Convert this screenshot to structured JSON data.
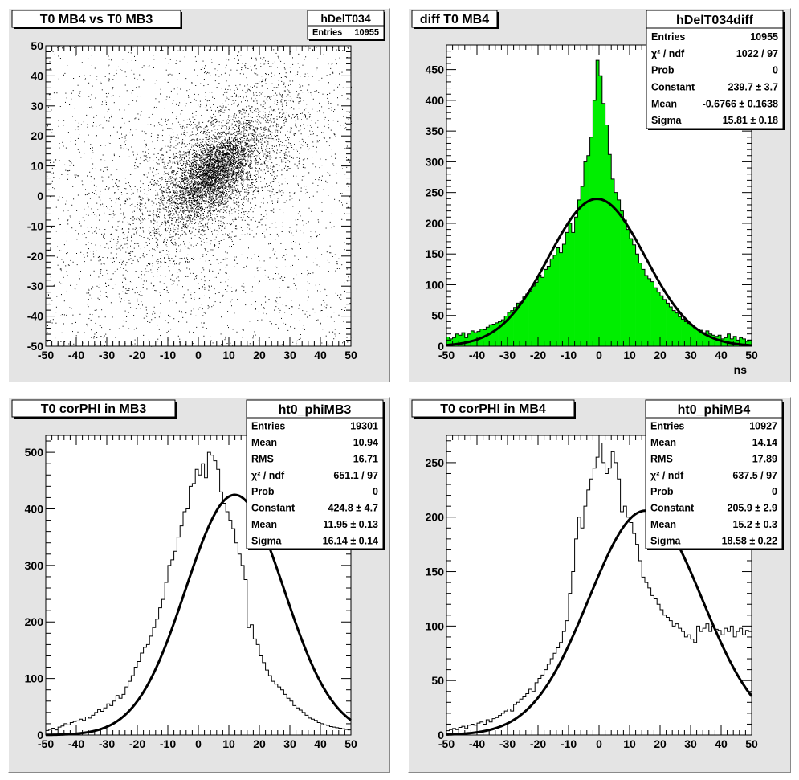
{
  "panels": [
    {
      "id": "p1",
      "title": "T0 MB4 vs T0 MB3",
      "stats": {
        "name": "hDelT034",
        "rows": [
          [
            "Entries",
            "10955"
          ]
        ]
      },
      "chart_data": {
        "type": "scatter",
        "xlim": [
          -50,
          50
        ],
        "ylim": [
          -50,
          50
        ],
        "xticks": [
          -50,
          -40,
          -30,
          -20,
          -10,
          0,
          10,
          20,
          30,
          40,
          50
        ],
        "yticks": [
          -50,
          -40,
          -30,
          -20,
          -10,
          0,
          10,
          20,
          30,
          40,
          50
        ],
        "entries": 10955,
        "distribution": {
          "mean_x": 11,
          "mean_y": 12,
          "sigma_core": 10,
          "correlation": 0.6,
          "background_fraction": 0.25
        },
        "xlabel": "",
        "ylabel": ""
      }
    },
    {
      "id": "p2",
      "title": "diff T0 MB4",
      "stats": {
        "name": "hDelT034diff",
        "rows": [
          [
            "Entries",
            "10955"
          ],
          [
            "χ² / ndf",
            "1022 / 97"
          ],
          [
            "Prob",
            "0"
          ],
          [
            "Constant",
            "239.7 ± 3.7"
          ],
          [
            "Mean",
            "-0.6766 ± 0.1638"
          ],
          [
            "Sigma",
            "15.81 ± 0.18"
          ]
        ]
      },
      "chart_data": {
        "type": "histogram",
        "fill": "#00ee00",
        "xlim": [
          -50,
          50
        ],
        "ylim": [
          0,
          490
        ],
        "xticks": [
          -50,
          -40,
          -30,
          -20,
          -10,
          0,
          10,
          20,
          30,
          40,
          50
        ],
        "yticks": [
          0,
          50,
          100,
          150,
          200,
          250,
          300,
          350,
          400,
          450
        ],
        "xlabel": "ns",
        "ylabel": "",
        "bins": 100,
        "values": [
          15,
          12,
          14,
          20,
          18,
          22,
          14,
          20,
          25,
          22,
          24,
          28,
          27,
          31,
          35,
          36,
          38,
          40,
          43,
          49,
          55,
          58,
          63,
          70,
          72,
          80,
          85,
          90,
          98,
          104,
          116,
          112,
          125,
          130,
          142,
          148,
          160,
          152,
          166,
          185,
          200,
          185,
          210,
          238,
          260,
          300,
          310,
          340,
          400,
          465,
          440,
          395,
          360,
          312,
          272,
          250,
          238,
          220,
          205,
          190,
          175,
          165,
          150,
          135,
          125,
          115,
          110,
          105,
          95,
          88,
          82,
          76,
          70,
          64,
          58,
          54,
          48,
          44,
          40,
          37,
          34,
          30,
          28,
          26,
          22,
          25,
          20,
          18,
          16,
          18,
          12,
          14,
          20,
          12,
          16,
          10,
          14,
          12,
          8,
          10
        ],
        "fit": {
          "constant": 239.7,
          "mean": -0.6766,
          "sigma": 15.81
        }
      }
    },
    {
      "id": "p3",
      "title": "T0 corPHI in MB3",
      "stats": {
        "name": "ht0_phiMB3",
        "rows": [
          [
            "Entries",
            "19301"
          ],
          [
            "Mean",
            "10.94"
          ],
          [
            "RMS",
            "16.71"
          ],
          [
            "χ² / ndf",
            "651.1 / 97"
          ],
          [
            "Prob",
            "0"
          ],
          [
            "Constant",
            "424.8 ± 4.7"
          ],
          [
            "Mean",
            "11.95 ± 0.13"
          ],
          [
            "Sigma",
            "16.14 ± 0.14"
          ]
        ]
      },
      "chart_data": {
        "type": "histogram",
        "fill": "none",
        "xlim": [
          -50,
          50
        ],
        "ylim": [
          0,
          530
        ],
        "xticks": [
          -50,
          -40,
          -30,
          -20,
          -10,
          0,
          10,
          20,
          30,
          40,
          50
        ],
        "yticks": [
          0,
          100,
          200,
          300,
          400,
          500
        ],
        "xlabel": "",
        "ylabel": "",
        "bins": 100,
        "values": [
          8,
          10,
          12,
          9,
          14,
          16,
          20,
          18,
          22,
          24,
          25,
          28,
          26,
          32,
          30,
          35,
          40,
          45,
          42,
          48,
          55,
          52,
          60,
          70,
          65,
          72,
          85,
          95,
          105,
          120,
          130,
          145,
          155,
          160,
          175,
          190,
          205,
          225,
          240,
          270,
          300,
          310,
          325,
          350,
          370,
          395,
          400,
          440,
          445,
          470,
          460,
          480,
          455,
          500,
          495,
          485,
          470,
          430,
          410,
          395,
          380,
          365,
          340,
          320,
          300,
          275,
          190,
          195,
          170,
          160,
          140,
          128,
          115,
          105,
          95,
          90,
          85,
          80,
          72,
          65,
          60,
          52,
          48,
          44,
          40,
          35,
          30,
          28,
          26,
          22,
          20,
          18,
          17,
          15,
          14,
          13,
          12,
          11,
          10,
          9
        ],
        "fit": {
          "constant": 424.8,
          "mean": 11.95,
          "sigma": 16.14
        }
      }
    },
    {
      "id": "p4",
      "title": "T0 corPHI in MB4",
      "stats": {
        "name": "ht0_phiMB4",
        "rows": [
          [
            "Entries",
            "10927"
          ],
          [
            "Mean",
            "14.14"
          ],
          [
            "RMS",
            "17.89"
          ],
          [
            "χ² / ndf",
            "637.5 / 97"
          ],
          [
            "Prob",
            "0"
          ],
          [
            "Constant",
            "205.9 ± 2.9"
          ],
          [
            "Mean",
            "15.2 ± 0.3"
          ],
          [
            "Sigma",
            "18.58 ± 0.22"
          ]
        ]
      },
      "chart_data": {
        "type": "histogram",
        "fill": "none",
        "xlim": [
          -50,
          50
        ],
        "ylim": [
          0,
          275
        ],
        "xticks": [
          -50,
          -40,
          -30,
          -20,
          -10,
          0,
          10,
          20,
          30,
          40,
          50
        ],
        "yticks": [
          0,
          50,
          100,
          150,
          200,
          250
        ],
        "xlabel": "",
        "ylabel": "",
        "bins": 100,
        "values": [
          4,
          5,
          6,
          5,
          7,
          8,
          6,
          9,
          10,
          9,
          11,
          12,
          10,
          14,
          12,
          15,
          16,
          18,
          20,
          22,
          24,
          22,
          28,
          30,
          33,
          35,
          38,
          42,
          40,
          48,
          52,
          55,
          60,
          65,
          70,
          75,
          80,
          85,
          95,
          105,
          130,
          150,
          180,
          200,
          190,
          210,
          225,
          235,
          245,
          255,
          268,
          250,
          240,
          245,
          260,
          250,
          235,
          205,
          210,
          200,
          195,
          185,
          175,
          160,
          145,
          140,
          135,
          128,
          125,
          120,
          115,
          110,
          108,
          105,
          100,
          102,
          98,
          95,
          90,
          92,
          88,
          85,
          100,
          95,
          98,
          102,
          95,
          100,
          97,
          96,
          92,
          98,
          95,
          100,
          90,
          95,
          98,
          92,
          96,
          95
        ],
        "fit": {
          "constant": 205.9,
          "mean": 15.2,
          "sigma": 18.58
        }
      }
    }
  ]
}
